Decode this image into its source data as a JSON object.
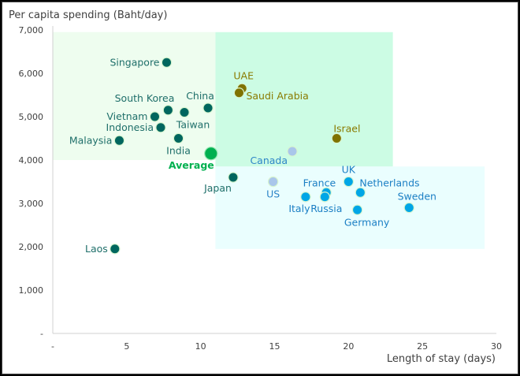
{
  "chart_data": {
    "type": "scatter",
    "title": "",
    "ylabel": "Per capita spending (Baht/day)",
    "xlabel": "Length of stay (days)",
    "xlim": [
      0,
      30
    ],
    "ylim": [
      0,
      7000
    ],
    "x_ticks": [
      "-",
      "5",
      "10",
      "15",
      "20",
      "25",
      "30"
    ],
    "y_ticks": [
      "-",
      "1,000",
      "2,000",
      "3,000",
      "4,000",
      "5,000",
      "6,000",
      "7,000"
    ],
    "grid": false,
    "colors": {
      "asia": "#00665E",
      "middle_east": "#7F7300",
      "western": "#00A6E6",
      "americas": "#A9C6EA",
      "average": "#00B050",
      "zone_asia": "#EEFDEF",
      "zone_middle": "#CCFCE4",
      "zone_western": "#EAFEFE"
    },
    "zones": [
      {
        "name": "short-stay-high-spend",
        "x": [
          0,
          11
        ],
        "y": [
          4000,
          6950
        ],
        "color_key": "zone_asia"
      },
      {
        "name": "mid-stay-high-spend",
        "x": [
          11,
          23
        ],
        "y": [
          3850,
          6950
        ],
        "color_key": "zone_middle"
      },
      {
        "name": "long-stay-mid-spend",
        "x": [
          11,
          29.2
        ],
        "y": [
          1950,
          3850
        ],
        "color_key": "zone_western"
      }
    ],
    "points": [
      {
        "label": "Singapore",
        "x": 7.7,
        "y": 6250,
        "group": "asia",
        "label_pos": "left"
      },
      {
        "label": "South Korea",
        "x": 7.8,
        "y": 5150,
        "group": "asia",
        "label_pos": "above-left"
      },
      {
        "label": "Taiwan",
        "x": 8.9,
        "y": 5100,
        "group": "asia",
        "label_pos": "below"
      },
      {
        "label": "China",
        "x": 10.5,
        "y": 5200,
        "group": "asia",
        "label_pos": "above"
      },
      {
        "label": "Vietnam",
        "x": 6.9,
        "y": 5000,
        "group": "asia",
        "label_pos": "left"
      },
      {
        "label": "Indonesia",
        "x": 7.3,
        "y": 4750,
        "group": "asia",
        "label_pos": "left"
      },
      {
        "label": "Malaysia",
        "x": 4.5,
        "y": 4450,
        "group": "asia",
        "label_pos": "left"
      },
      {
        "label": "India",
        "x": 8.5,
        "y": 4500,
        "group": "asia",
        "label_pos": "below"
      },
      {
        "label": "Japan",
        "x": 12.2,
        "y": 3600,
        "group": "asia",
        "label_pos": "below-left"
      },
      {
        "label": "Laos",
        "x": 4.2,
        "y": 1950,
        "group": "asia",
        "label_pos": "left"
      },
      {
        "label": "UAE",
        "x": 12.8,
        "y": 5650,
        "group": "middle_east",
        "label_pos": "above"
      },
      {
        "label": "Saudi Arabia",
        "x": 12.6,
        "y": 5550,
        "group": "middle_east",
        "label_pos": "right"
      },
      {
        "label": "Israel",
        "x": 19.2,
        "y": 4500,
        "group": "middle_east",
        "label_pos": "above-right"
      },
      {
        "label": "Canada",
        "x": 16.2,
        "y": 4200,
        "group": "americas",
        "label_pos": "below-left"
      },
      {
        "label": "US",
        "x": 14.9,
        "y": 3500,
        "group": "americas",
        "label_pos": "below"
      },
      {
        "label": "France",
        "x": 18.5,
        "y": 3250,
        "group": "western",
        "label_pos": "above-left"
      },
      {
        "label": "Italy",
        "x": 17.1,
        "y": 3150,
        "group": "western",
        "label_pos": "below"
      },
      {
        "label": "Russia",
        "x": 18.4,
        "y": 3150,
        "group": "western",
        "label_pos": "below"
      },
      {
        "label": "UK",
        "x": 20.0,
        "y": 3500,
        "group": "western",
        "label_pos": "above"
      },
      {
        "label": "Netherlands",
        "x": 20.8,
        "y": 3250,
        "group": "western",
        "label_pos": "above-right"
      },
      {
        "label": "Germany",
        "x": 20.6,
        "y": 2850,
        "group": "western",
        "label_pos": "below"
      },
      {
        "label": "Sweden",
        "x": 24.1,
        "y": 2900,
        "group": "western",
        "label_pos": "above"
      },
      {
        "label": "Average",
        "x": 10.7,
        "y": 4150,
        "group": "average",
        "label_pos": "below-left",
        "bold": true
      }
    ]
  }
}
